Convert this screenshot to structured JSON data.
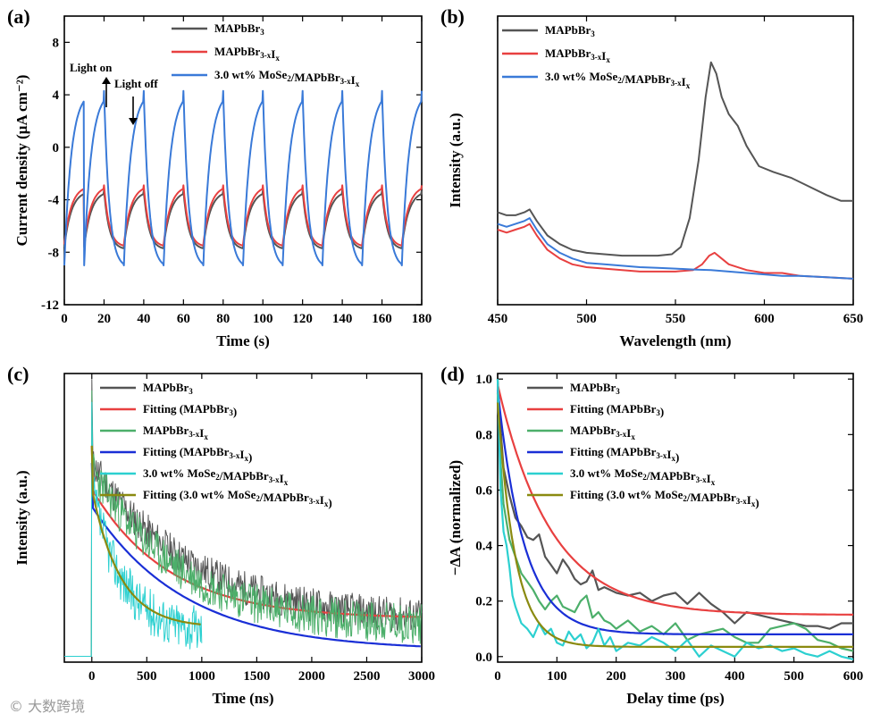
{
  "figure": {
    "watermark": "© 大数跨境"
  },
  "chart_data": [
    {
      "id": "a",
      "type": "line",
      "panel_label": "(a)",
      "xlabel": "Time (s)",
      "ylabel": "Current density (μA cm⁻²)",
      "xlim": [
        0,
        180
      ],
      "ylim": [
        -12,
        10
      ],
      "xticks": [
        0,
        20,
        40,
        60,
        80,
        100,
        120,
        140,
        160,
        180
      ],
      "yticks": [
        -12,
        -8,
        -4,
        0,
        4,
        8
      ],
      "legend_position": "top-right",
      "annotations": [
        "Light on",
        "Light off"
      ],
      "series": [
        {
          "name": "MAPbBr3",
          "legend_main": "MAPbBr",
          "legend_sub": "3",
          "legend_sub2": "",
          "legend_sub3": "",
          "color": "#555555",
          "kind": "chopped",
          "period": 20,
          "first_on": 10,
          "high": -3.3,
          "low": -7.6,
          "start": -7.8
        },
        {
          "name": "MAPbBr3-xIx",
          "legend_main": "MAPbBr",
          "legend_sub": "3-x",
          "legend_sub2": "I",
          "legend_sub3": "x",
          "color": "#e84040",
          "kind": "chopped",
          "period": 20,
          "first_on": 10,
          "high": -2.9,
          "low": -7.4,
          "start": -7.5
        },
        {
          "name": "3.0 wt% MoSe2/MAPbBr3-xIx",
          "legend_main": "3.0 wt% MoSe",
          "legend_sub": "2",
          "legend_mid": "/MAPbBr",
          "legend_sub2": "3-x",
          "legend_mid2": "I",
          "legend_sub3": "x",
          "color": "#3a7ad8",
          "kind": "chopped",
          "period": 20,
          "first_on": 10,
          "high": 4.3,
          "low": -9.0,
          "start": -10.2
        }
      ]
    },
    {
      "id": "b",
      "type": "line",
      "panel_label": "(b)",
      "xlabel": "Wavelength (nm)",
      "ylabel": "Intensity (a.u.)",
      "xlim": [
        450,
        650
      ],
      "ylim": [
        0,
        1
      ],
      "xticks": [
        450,
        500,
        550,
        600,
        650
      ],
      "yticks": [],
      "legend_position": "top-left",
      "series": [
        {
          "name": "MAPbBr3",
          "color": "#555555",
          "x": [
            450,
            455,
            460,
            465,
            468,
            472,
            478,
            485,
            492,
            500,
            510,
            520,
            530,
            540,
            548,
            553,
            558,
            563,
            567,
            570,
            573,
            576,
            580,
            585,
            590,
            597,
            605,
            615,
            625,
            635,
            643,
            650
          ],
          "y": [
            0.32,
            0.31,
            0.31,
            0.32,
            0.33,
            0.29,
            0.24,
            0.21,
            0.19,
            0.18,
            0.175,
            0.17,
            0.17,
            0.17,
            0.175,
            0.2,
            0.3,
            0.5,
            0.72,
            0.84,
            0.8,
            0.72,
            0.66,
            0.62,
            0.55,
            0.48,
            0.46,
            0.44,
            0.41,
            0.38,
            0.36,
            0.36
          ]
        },
        {
          "name": "MAPbBr3-xIx",
          "color": "#e84040",
          "x": [
            450,
            455,
            460,
            465,
            468,
            472,
            478,
            485,
            492,
            500,
            510,
            520,
            530,
            540,
            550,
            560,
            565,
            569,
            572,
            576,
            580,
            590,
            600,
            610,
            620,
            635,
            650
          ],
          "y": [
            0.26,
            0.25,
            0.26,
            0.27,
            0.28,
            0.24,
            0.19,
            0.16,
            0.14,
            0.13,
            0.125,
            0.12,
            0.115,
            0.115,
            0.115,
            0.12,
            0.14,
            0.17,
            0.18,
            0.16,
            0.14,
            0.12,
            0.11,
            0.11,
            0.1,
            0.095,
            0.09
          ]
        },
        {
          "name": "3.0 wt% MoSe2/MAPbBr3-xIx",
          "color": "#3a7ad8",
          "x": [
            450,
            455,
            460,
            465,
            468,
            472,
            478,
            485,
            492,
            500,
            510,
            520,
            530,
            540,
            550,
            560,
            570,
            580,
            590,
            600,
            610,
            620,
            635,
            650
          ],
          "y": [
            0.28,
            0.27,
            0.28,
            0.29,
            0.3,
            0.26,
            0.21,
            0.18,
            0.16,
            0.145,
            0.14,
            0.135,
            0.13,
            0.128,
            0.125,
            0.122,
            0.12,
            0.115,
            0.11,
            0.105,
            0.1,
            0.1,
            0.095,
            0.09
          ]
        }
      ]
    },
    {
      "id": "c",
      "type": "line",
      "panel_label": "(c)",
      "xlabel": "Time (ns)",
      "ylabel": "Intensity (a.u.)",
      "xlim": [
        -250,
        3000
      ],
      "ylim": [
        0,
        1
      ],
      "xticks": [
        0,
        500,
        1000,
        1500,
        2000,
        2500,
        3000
      ],
      "yticks": [],
      "legend_position": "top-right",
      "series": [
        {
          "name": "MAPbBr3",
          "color": "#555555",
          "kind": "noisy_decay",
          "amp": 0.55,
          "tau": 900,
          "base": 0.14,
          "noise": 0.06,
          "tmax": 3000
        },
        {
          "name": "Fitting (MAPbBr3)",
          "color": "#e84040",
          "kind": "fit_decay",
          "amp": 0.45,
          "tau": 700,
          "base": 0.15,
          "tmax": 3000
        },
        {
          "name": "MAPbBr3-xIx",
          "color": "#4caf6a",
          "kind": "noisy_decay",
          "amp": 0.55,
          "tau": 800,
          "base": 0.12,
          "noise": 0.07,
          "tmax": 3000
        },
        {
          "name": "Fitting (MAPbBr3-xIx)",
          "color": "#1a2fd6",
          "kind": "fit_decay",
          "amp": 0.5,
          "tau": 850,
          "base": 0.04,
          "tmax": 3000
        },
        {
          "name": "3.0 wt% MoSe2/MAPbBr3-xIx",
          "color": "#2cd0d0",
          "kind": "noisy_decay",
          "amp": 0.5,
          "tau": 280,
          "base": 0.1,
          "noise": 0.08,
          "tmax": 1000
        },
        {
          "name": "Fitting (3.0 wt% MoSe2/MAPbBr3-xIx)",
          "color": "#8a8a10",
          "kind": "fit_decay",
          "amp": 0.48,
          "tau": 260,
          "base": 0.12,
          "tmax": 1000
        }
      ],
      "legend": [
        {
          "main": "MAPbBr",
          "parts": [
            [
              "MAPbBr",
              ""
            ],
            [
              "3",
              "sub"
            ]
          ]
        },
        {
          "parts": [
            [
              "Fitting (MAPbBr",
              ""
            ],
            [
              "3",
              "sub"
            ],
            [
              ")",
              ""
            ]
          ]
        },
        {
          "parts": [
            [
              "MAPbBr",
              ""
            ],
            [
              "3-x",
              "sub"
            ],
            [
              "I",
              ""
            ],
            [
              "x",
              "sub"
            ]
          ]
        },
        {
          "parts": [
            [
              "Fitting (MAPbBr",
              ""
            ],
            [
              "3-x",
              "sub"
            ],
            [
              "I",
              ""
            ],
            [
              "x",
              "sub"
            ],
            [
              ")",
              ""
            ]
          ]
        },
        {
          "parts": [
            [
              "3.0 wt% MoSe",
              ""
            ],
            [
              "2",
              "sub"
            ],
            [
              "/MAPbBr",
              ""
            ],
            [
              "3-x",
              "sub"
            ],
            [
              "I",
              ""
            ],
            [
              "x",
              "sub"
            ]
          ]
        },
        {
          "parts": [
            [
              "Fitting (3.0 wt% MoSe",
              ""
            ],
            [
              "2",
              "sub"
            ],
            [
              "/MAPbBr",
              ""
            ],
            [
              "3-x",
              "sub"
            ],
            [
              "I",
              ""
            ],
            [
              "x",
              "sub"
            ],
            [
              ")",
              ""
            ]
          ]
        }
      ]
    },
    {
      "id": "d",
      "type": "line",
      "panel_label": "(d)",
      "xlabel": "Delay time (ps)",
      "ylabel": "−ΔA (normalized)",
      "xlim": [
        0,
        600
      ],
      "ylim": [
        -0.02,
        1.02
      ],
      "xticks": [
        0,
        100,
        200,
        300,
        400,
        500,
        600
      ],
      "yticks": [
        0.0,
        0.2,
        0.4,
        0.6,
        0.8,
        1.0
      ],
      "legend_position": "top-right",
      "series": [
        {
          "name": "MAPbBr3",
          "color": "#555555",
          "x": [
            0,
            5,
            10,
            20,
            30,
            40,
            50,
            60,
            70,
            80,
            90,
            100,
            110,
            120,
            130,
            140,
            150,
            160,
            170,
            180,
            200,
            220,
            240,
            260,
            280,
            300,
            320,
            340,
            360,
            380,
            400,
            420,
            440,
            460,
            480,
            500,
            520,
            540,
            560,
            580,
            600
          ],
          "y": [
            1.0,
            0.82,
            0.68,
            0.58,
            0.5,
            0.47,
            0.43,
            0.42,
            0.44,
            0.36,
            0.33,
            0.3,
            0.35,
            0.32,
            0.28,
            0.26,
            0.27,
            0.31,
            0.24,
            0.25,
            0.23,
            0.22,
            0.23,
            0.2,
            0.22,
            0.23,
            0.19,
            0.23,
            0.19,
            0.16,
            0.12,
            0.16,
            0.15,
            0.14,
            0.13,
            0.12,
            0.11,
            0.11,
            0.1,
            0.12,
            0.12
          ]
        },
        {
          "name": "Fitting (MAPbBr3)",
          "color": "#e84040",
          "kind": "fit_decay",
          "amp": 0.83,
          "tau": 90,
          "base": 0.15,
          "tmax": 600
        },
        {
          "name": "MAPbBr3-xIx",
          "color": "#4caf6a",
          "x": [
            0,
            5,
            10,
            20,
            30,
            40,
            50,
            60,
            70,
            80,
            90,
            100,
            110,
            120,
            130,
            140,
            150,
            160,
            170,
            180,
            190,
            200,
            220,
            240,
            260,
            280,
            300,
            320,
            340,
            360,
            380,
            400,
            420,
            440,
            460,
            480,
            500,
            520,
            540,
            560,
            580,
            600
          ],
          "y": [
            0.95,
            0.7,
            0.55,
            0.42,
            0.36,
            0.3,
            0.27,
            0.24,
            0.2,
            0.17,
            0.2,
            0.22,
            0.18,
            0.17,
            0.16,
            0.2,
            0.22,
            0.14,
            0.16,
            0.13,
            0.12,
            0.1,
            0.13,
            0.09,
            0.11,
            0.08,
            0.12,
            0.06,
            0.08,
            0.09,
            0.1,
            0.07,
            0.05,
            0.05,
            0.1,
            0.11,
            0.12,
            0.1,
            0.06,
            0.05,
            0.03,
            0.02
          ]
        },
        {
          "name": "Fitting (MAPbBr3-xIx)",
          "color": "#1a2fd6",
          "kind": "fit_decay",
          "amp": 0.88,
          "tau": 45,
          "base": 0.08,
          "tmax": 600
        },
        {
          "name": "3.0 wt% MoSe2/MAPbBr3-xIx",
          "color": "#2cd0d0",
          "x": [
            0,
            5,
            10,
            15,
            20,
            25,
            30,
            40,
            50,
            60,
            70,
            80,
            90,
            100,
            110,
            120,
            130,
            140,
            150,
            160,
            170,
            180,
            190,
            200,
            220,
            240,
            260,
            280,
            300,
            320,
            340,
            360,
            380,
            400,
            420,
            440,
            460,
            480,
            500,
            520,
            540,
            560,
            580,
            600
          ],
          "y": [
            1.0,
            0.6,
            0.45,
            0.4,
            0.32,
            0.22,
            0.18,
            0.12,
            0.1,
            0.07,
            0.12,
            0.08,
            0.1,
            0.05,
            0.04,
            0.09,
            0.06,
            0.08,
            0.03,
            0.05,
            0.1,
            0.04,
            0.07,
            0.02,
            0.05,
            0.04,
            0.07,
            0.05,
            0.02,
            0.06,
            0.0,
            0.04,
            0.02,
            0.0,
            0.05,
            0.03,
            0.04,
            0.02,
            0.03,
            0.01,
            0.0,
            0.02,
            0.0,
            -0.01
          ]
        },
        {
          "name": "Fitting (3.0 wt% MoSe2/MAPbBr3-xIx)",
          "color": "#8a8a10",
          "kind": "fit_decay",
          "amp": 0.88,
          "tau": 30,
          "base": 0.035,
          "tmax": 600
        }
      ],
      "legend": [
        {
          "parts": [
            [
              "MAPbBr",
              ""
            ],
            [
              "3",
              "sub"
            ]
          ]
        },
        {
          "parts": [
            [
              "Fitting (MAPbBr",
              ""
            ],
            [
              "3",
              "sub"
            ],
            [
              ")",
              ""
            ]
          ]
        },
        {
          "parts": [
            [
              "MAPbBr",
              ""
            ],
            [
              "3-x",
              "sub"
            ],
            [
              "I",
              ""
            ],
            [
              "x",
              "sub"
            ]
          ]
        },
        {
          "parts": [
            [
              "Fitting (MAPbBr",
              ""
            ],
            [
              "3-x",
              "sub"
            ],
            [
              "I",
              ""
            ],
            [
              "x",
              "sub"
            ],
            [
              ")",
              ""
            ]
          ]
        },
        {
          "parts": [
            [
              "3.0 wt% MoSe",
              ""
            ],
            [
              "2",
              "sub"
            ],
            [
              "/MAPbBr",
              ""
            ],
            [
              "3-x",
              "sub"
            ],
            [
              "I",
              ""
            ],
            [
              "x",
              "sub"
            ]
          ]
        },
        {
          "parts": [
            [
              "Fitting (3.0 wt% MoSe",
              ""
            ],
            [
              "2",
              "sub"
            ],
            [
              "/MAPbBr",
              ""
            ],
            [
              "3-x",
              "sub"
            ],
            [
              "I",
              ""
            ],
            [
              "x",
              "sub"
            ],
            [
              ")",
              ""
            ]
          ]
        }
      ]
    }
  ]
}
